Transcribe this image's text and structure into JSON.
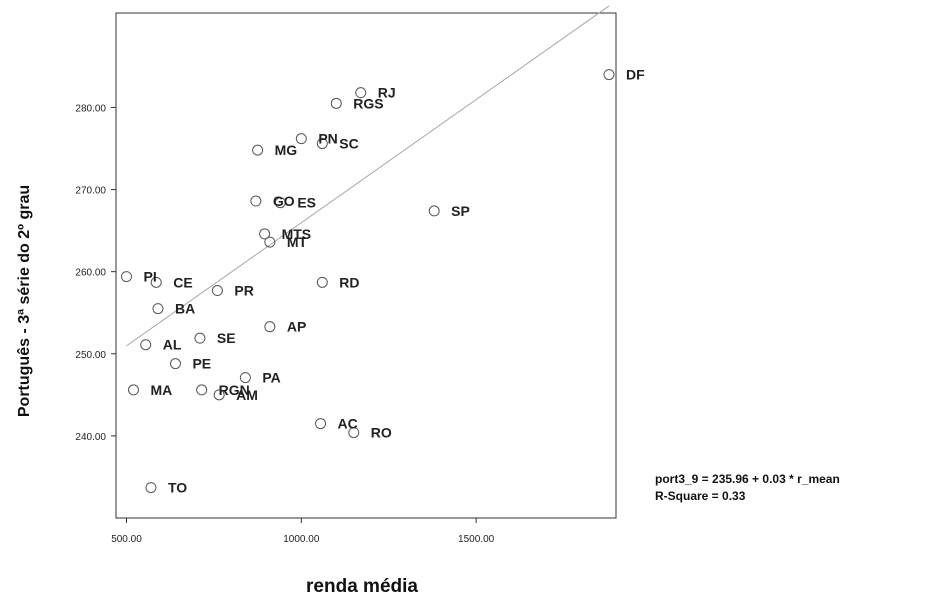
{
  "chart_data": {
    "type": "scatter",
    "xlabel": "renda média",
    "ylabel": "Português - 3ª série do 2º grau",
    "xlim": [
      470,
      1900
    ],
    "ylim": [
      230,
      291.5
    ],
    "x_ticks": [
      500,
      1000,
      1500
    ],
    "x_tick_labels": [
      "500.00",
      "1000.00",
      "1500.00"
    ],
    "y_ticks": [
      240,
      250,
      260,
      270,
      280
    ],
    "y_tick_labels": [
      "240.00",
      "250.00",
      "260.00",
      "270.00",
      "280.00"
    ],
    "grid": false,
    "marker": "open-circle",
    "points": [
      {
        "label": "DF",
        "x": 1880,
        "y": 284.0
      },
      {
        "label": "RJ",
        "x": 1170,
        "y": 281.8
      },
      {
        "label": "RGS",
        "x": 1100,
        "y": 280.5
      },
      {
        "label": "PN",
        "x": 1000,
        "y": 276.2
      },
      {
        "label": "SC",
        "x": 1060,
        "y": 275.6
      },
      {
        "label": "MG",
        "x": 875,
        "y": 274.8
      },
      {
        "label": "GO",
        "x": 870,
        "y": 268.6
      },
      {
        "label": "ES",
        "x": 940,
        "y": 268.4
      },
      {
        "label": "SP",
        "x": 1380,
        "y": 267.4
      },
      {
        "label": "MTS",
        "x": 895,
        "y": 264.6
      },
      {
        "label": "MT",
        "x": 910,
        "y": 263.6
      },
      {
        "label": "PI",
        "x": 500,
        "y": 259.4
      },
      {
        "label": "CE",
        "x": 585,
        "y": 258.7
      },
      {
        "label": "RD",
        "x": 1060,
        "y": 258.7
      },
      {
        "label": "PR",
        "x": 760,
        "y": 257.7
      },
      {
        "label": "BA",
        "x": 590,
        "y": 255.5
      },
      {
        "label": "AP",
        "x": 910,
        "y": 253.3
      },
      {
        "label": "SE",
        "x": 710,
        "y": 251.9
      },
      {
        "label": "AL",
        "x": 555,
        "y": 251.1
      },
      {
        "label": "PE",
        "x": 640,
        "y": 248.8
      },
      {
        "label": "PA",
        "x": 840,
        "y": 247.1
      },
      {
        "label": "MA",
        "x": 520,
        "y": 245.6
      },
      {
        "label": "RGN",
        "x": 715,
        "y": 245.6
      },
      {
        "label": "AM",
        "x": 765,
        "y": 245.0
      },
      {
        "label": "AC",
        "x": 1055,
        "y": 241.5
      },
      {
        "label": "RO",
        "x": 1150,
        "y": 240.4
      },
      {
        "label": "TO",
        "x": 570,
        "y": 233.7
      }
    ],
    "fit_line": {
      "intercept": 235.96,
      "slope": 0.03
    },
    "annotations": [
      "port3_9 = 235.96 + 0.03 * r_mean",
      "R-Square = 0.33"
    ],
    "colors": {
      "marker": "#555555",
      "fit_line": "#a8a8a8",
      "frame": "#333333",
      "text": "#222222"
    }
  }
}
